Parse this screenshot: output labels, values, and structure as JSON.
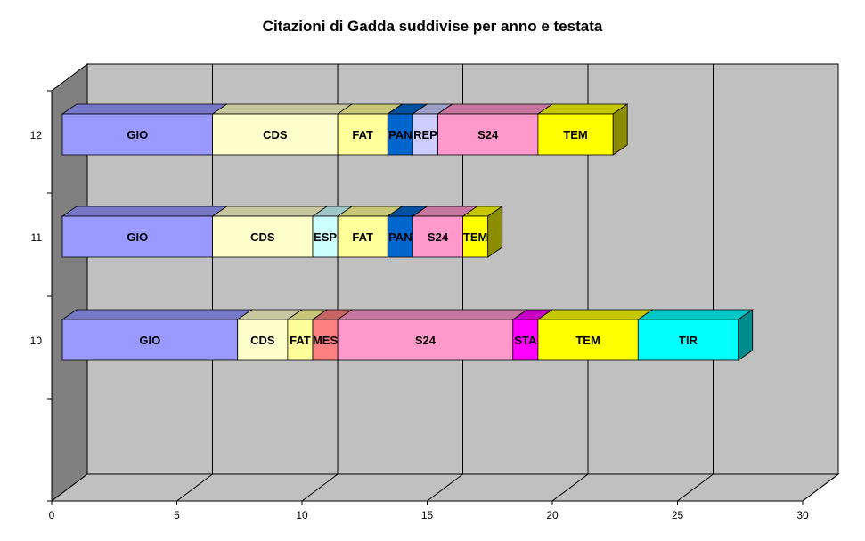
{
  "chart_data": {
    "type": "bar",
    "orientation": "horizontal",
    "stacked": true,
    "three_d": true,
    "title": "Citazioni di Gadda suddivise per anno e testata",
    "xlim": [
      0,
      30
    ],
    "x_ticks": [
      "0",
      "5",
      "10",
      "15",
      "20",
      "25",
      "30"
    ],
    "categories": [
      "10",
      "11",
      "12"
    ],
    "grid": true,
    "legend": "none",
    "series": [
      {
        "category": "10",
        "segments": [
          {
            "label": "GIO",
            "value": 7,
            "color": "#9999ff"
          },
          {
            "label": "CDS",
            "value": 2,
            "color": "#ffffcc"
          },
          {
            "label": "FAT",
            "value": 1,
            "color": "#ffff99"
          },
          {
            "label": "MES",
            "value": 1,
            "color": "#ff8080"
          },
          {
            "label": "S24",
            "value": 7,
            "color": "#ff99cc"
          },
          {
            "label": "STA",
            "value": 1,
            "color": "#ff00ff"
          },
          {
            "label": "TEM",
            "value": 4,
            "color": "#ffff00"
          },
          {
            "label": "TIR",
            "value": 4,
            "color": "#00ffff"
          }
        ]
      },
      {
        "category": "11",
        "segments": [
          {
            "label": "GIO",
            "value": 6,
            "color": "#9999ff"
          },
          {
            "label": "CDS",
            "value": 4,
            "color": "#ffffcc"
          },
          {
            "label": "ESP",
            "value": 1,
            "color": "#ccffff"
          },
          {
            "label": "FAT",
            "value": 2,
            "color": "#ffff99"
          },
          {
            "label": "PAN",
            "value": 1,
            "color": "#0066cc"
          },
          {
            "label": "S24",
            "value": 2,
            "color": "#ff99cc"
          },
          {
            "label": "TEM",
            "value": 1,
            "color": "#ffff00"
          }
        ]
      },
      {
        "category": "12",
        "segments": [
          {
            "label": "GIO",
            "value": 6,
            "color": "#9999ff"
          },
          {
            "label": "CDS",
            "value": 5,
            "color": "#ffffcc"
          },
          {
            "label": "FAT",
            "value": 2,
            "color": "#ffff99"
          },
          {
            "label": "PAN",
            "value": 1,
            "color": "#0066cc"
          },
          {
            "label": "REP",
            "value": 1,
            "color": "#ccccff"
          },
          {
            "label": "S24",
            "value": 4,
            "color": "#ff99cc"
          },
          {
            "label": "TEM",
            "value": 3,
            "color": "#ffff00"
          }
        ]
      }
    ],
    "colors": {
      "back_wall": "#c0c0c0",
      "side_wall": "#808080",
      "gridline": "#000000"
    }
  }
}
